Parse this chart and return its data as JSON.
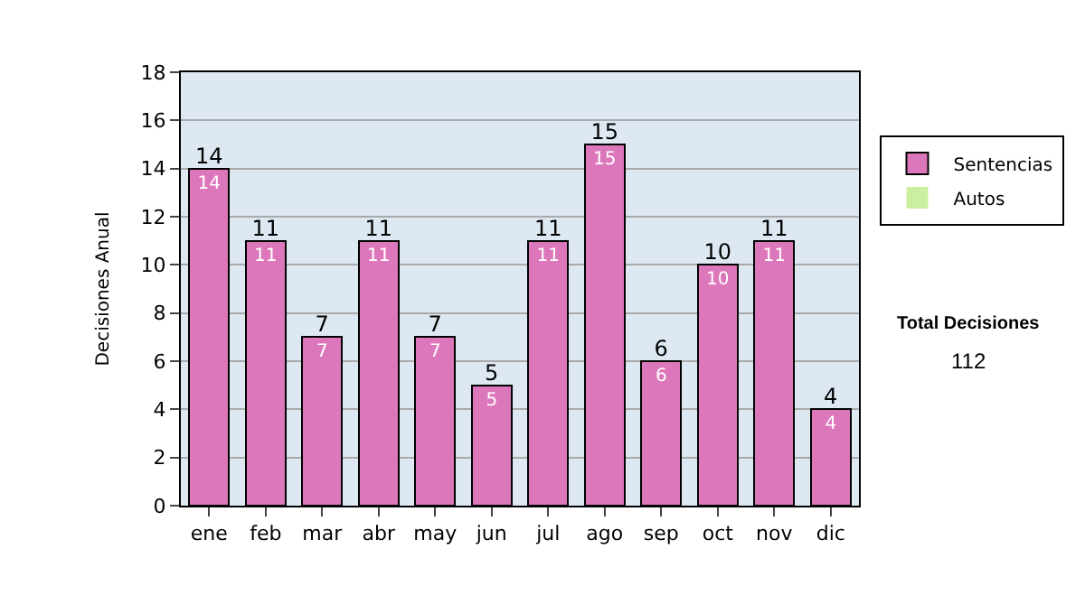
{
  "chart_data": {
    "type": "bar",
    "stacked": true,
    "ylabel": "Decisiones Anual",
    "categories": [
      "ene",
      "feb",
      "mar",
      "abr",
      "may",
      "jun",
      "jul",
      "ago",
      "sep",
      "oct",
      "nov",
      "dic"
    ],
    "series": [
      {
        "name": "Sentencias",
        "color": "#dd77bb",
        "values": [
          14,
          11,
          7,
          11,
          7,
          5,
          11,
          15,
          6,
          10,
          11,
          4
        ],
        "value_labels": [
          "14",
          "11",
          "7",
          "11",
          "7",
          "5",
          "11",
          "15",
          "6",
          "10",
          "11",
          "4"
        ]
      },
      {
        "name": "Autos",
        "color": "#cceea0",
        "values": [
          0,
          0,
          0,
          0,
          0,
          0,
          0,
          0,
          0,
          0,
          0,
          0
        ]
      }
    ],
    "totals": [
      "14",
      "11",
      "7",
      "11",
      "7",
      "5",
      "11",
      "15",
      "6",
      "10",
      "11",
      "4"
    ],
    "ylim": [
      0,
      18
    ],
    "yticks": [
      0,
      2,
      4,
      6,
      8,
      10,
      12,
      14,
      16,
      18
    ],
    "grid": "y",
    "legend": "right",
    "annotations": [
      "Total Decisiones",
      "112"
    ]
  }
}
